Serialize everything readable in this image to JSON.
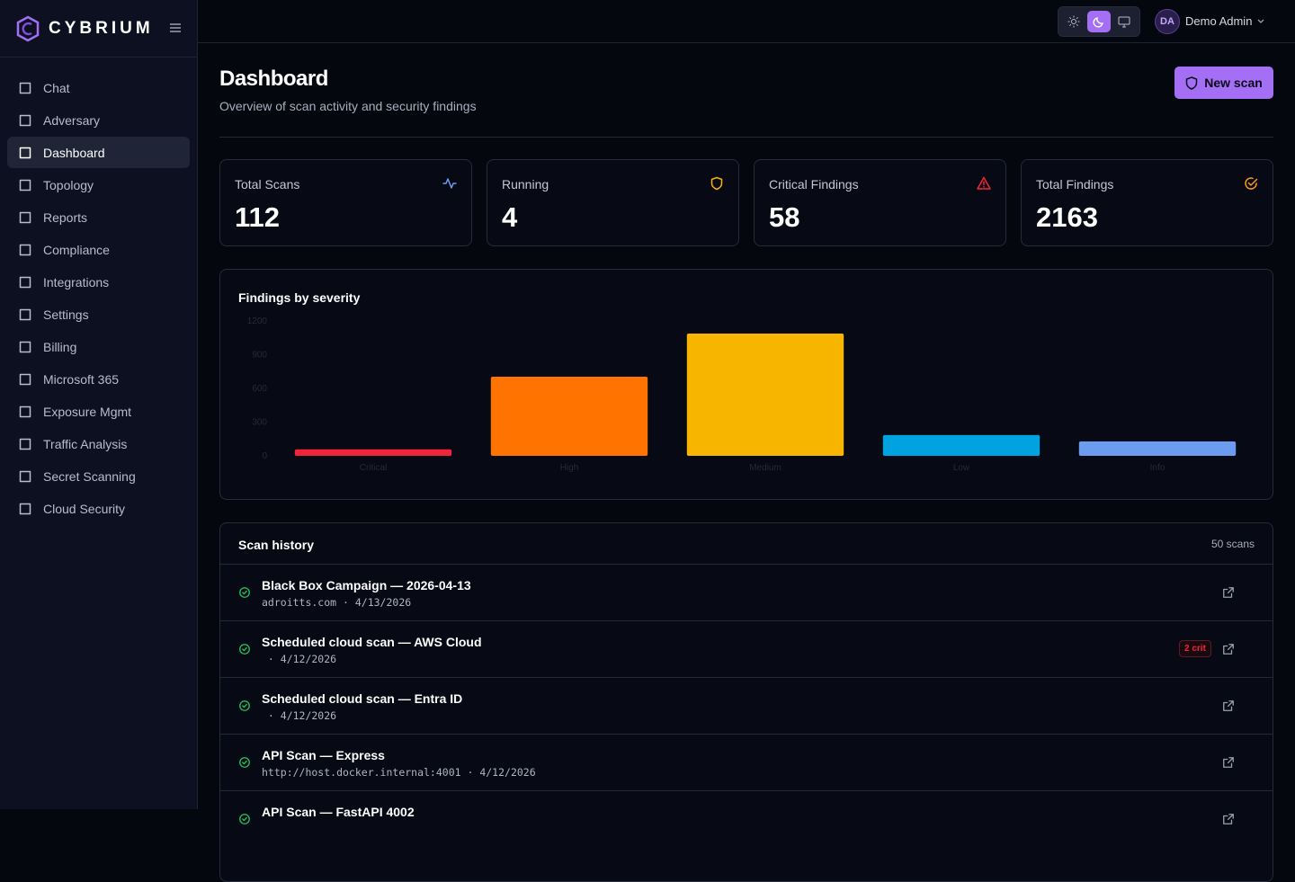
{
  "sidebar": {
    "brand": "CYBRIUM",
    "nav": [
      {
        "label": "Chat"
      },
      {
        "label": "Adversary"
      },
      {
        "label": "Dashboard",
        "active": true
      },
      {
        "label": "Topology"
      },
      {
        "label": "Reports"
      },
      {
        "label": "Compliance"
      },
      {
        "label": "Integrations"
      },
      {
        "label": "Settings"
      },
      {
        "label": "Billing"
      },
      {
        "label": "Microsoft 365"
      },
      {
        "label": "Exposure Mgmt"
      },
      {
        "label": "Traffic Analysis"
      },
      {
        "label": "Secret Scanning"
      },
      {
        "label": "Cloud Security"
      }
    ]
  },
  "topbar": {
    "user_initials": "DA",
    "user_name": "Demo Admin"
  },
  "header": {
    "title": "Dashboard",
    "subtitle": "Overview of scan activity and security findings",
    "button": "New scan"
  },
  "stats": [
    {
      "label": "Total Scans",
      "value": 112,
      "color": "#6b9cf0"
    },
    {
      "label": "Running",
      "value": 4,
      "color": "#f7b500"
    },
    {
      "label": "Critical Findings",
      "value": 58,
      "color": "#f0253b"
    },
    {
      "label": "Total Findings",
      "value": 2163,
      "color": "#ff9a1f"
    }
  ],
  "chart_data": {
    "type": "bar",
    "title": "Findings by severity",
    "categories": [
      "Critical",
      "High",
      "Medium",
      "Low",
      "Info"
    ],
    "values": [
      58,
      704,
      1088,
      185,
      128
    ],
    "colors": [
      "#f0253b",
      "#ff7300",
      "#f7b500",
      "#00a3e0",
      "#6b9cf0"
    ],
    "ylim": [
      0,
      1200
    ],
    "yticks": [
      0,
      300,
      600,
      900,
      1200
    ],
    "grid": false
  },
  "scan_history": {
    "title": "Scan history",
    "count": "50 scans",
    "rows": [
      {
        "title": "Black Box Campaign — 2026-04-13",
        "meta": "adroitts.com · 4/13/2026"
      },
      {
        "title": "Scheduled cloud scan — AWS Cloud",
        "meta": " · 4/12/2026",
        "badge": "2 crit"
      },
      {
        "title": "Scheduled cloud scan — Entra ID",
        "meta": " · 4/12/2026"
      },
      {
        "title": "API Scan — Express",
        "meta": "http://host.docker.internal:4001 · 4/12/2026"
      },
      {
        "title": "API Scan — FastAPI 4002"
      }
    ]
  }
}
